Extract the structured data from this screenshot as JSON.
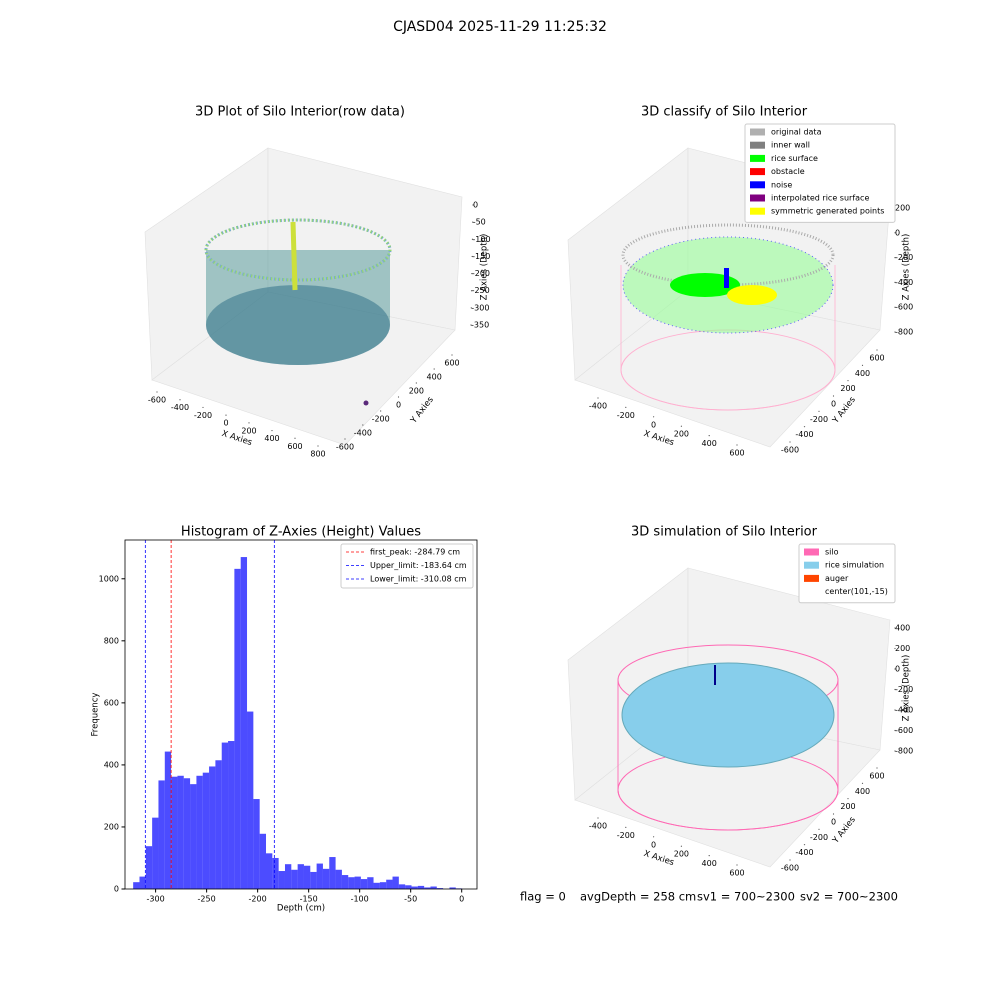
{
  "title": "CJASD04 2025-11-29 11:25:32",
  "footer": [
    "flag = 0",
    "avgDepth = 258 cm",
    "sv1 = 700~2300",
    "sv2 = 700~2300"
  ],
  "chart_data": [
    {
      "type": "scatter3d",
      "title": "3D Plot of Silo Interior(row data)",
      "xlabel": "X Axies",
      "ylabel": "Y Axies",
      "zlabel": "Z Axies (Depth)",
      "xticks": [
        -600,
        -400,
        -200,
        0,
        200,
        400,
        600,
        800
      ],
      "yticks": [
        -600,
        -400,
        -200,
        0,
        200,
        400,
        600
      ],
      "zticks": [
        0,
        -50,
        -100,
        -150,
        -200,
        -250,
        -300,
        -350
      ]
    },
    {
      "type": "scatter3d",
      "title": "3D classify of Silo Interior",
      "xlabel": "X Axies",
      "ylabel": "Y Axies",
      "zlabel": "Z Axies (Depth)",
      "xticks": [
        -400,
        -200,
        0,
        200,
        400,
        600
      ],
      "yticks": [
        -600,
        -400,
        -200,
        0,
        200,
        400,
        600
      ],
      "zticks": [
        200,
        0,
        -200,
        -400,
        -600,
        -800
      ],
      "series": [
        {
          "name": "original data",
          "color": "#b0b0b0"
        },
        {
          "name": "inner wall",
          "color": "#808080"
        },
        {
          "name": "rice surface",
          "color": "#00ff00"
        },
        {
          "name": "obstacle",
          "color": "#ff0000"
        },
        {
          "name": "noise",
          "color": "#0000ff"
        },
        {
          "name": "interpolated rice surface",
          "color": "#800080"
        },
        {
          "name": "symmetric generated points",
          "color": "#ffff00"
        }
      ]
    },
    {
      "type": "histogram",
      "title": "Histogram of Z-Axies (Height) Values",
      "xlabel": "Depth (cm)",
      "ylabel": "Frequency",
      "color": "#0000ff",
      "bins": [
        -322,
        -315.8,
        -309.6,
        -303.4,
        -297.2,
        -291,
        -284.8,
        -278.6,
        -272.4,
        -266.2,
        -260,
        -253.8,
        -247.6,
        -241.4,
        -235.2,
        -229,
        -222.8,
        -216.6,
        -210.4,
        -204.2,
        -198,
        -191.8,
        -185.6,
        -179.4,
        -173.2,
        -167,
        -160.8,
        -154.6,
        -148.4,
        -142.2,
        -136,
        -129.8,
        -123.6,
        -117.4,
        -111.2,
        -105,
        -98.8,
        -92.6,
        -86.4,
        -80.2,
        -74,
        -67.8,
        -61.6,
        -55.4,
        -49.2,
        -43,
        -36.8,
        -30.6,
        -24.4,
        -18.2,
        -12,
        -5.8,
        0.4
      ],
      "counts": [
        22,
        40,
        138,
        230,
        350,
        443,
        362,
        365,
        357,
        338,
        365,
        375,
        395,
        415,
        472,
        477,
        1032,
        1070,
        572,
        290,
        178,
        115,
        100,
        58,
        80,
        62,
        80,
        75,
        55,
        82,
        65,
        103,
        62,
        45,
        38,
        40,
        32,
        38,
        20,
        22,
        30,
        40,
        15,
        12,
        8,
        10,
        5,
        8,
        3,
        0,
        5,
        2
      ],
      "xlim": [
        -330,
        15
      ],
      "xticks": [
        -300,
        -250,
        -200,
        -150,
        -100,
        -50,
        0
      ],
      "ylim": [
        0,
        1125
      ],
      "yticks": [
        0,
        200,
        400,
        600,
        800,
        1000
      ],
      "lines": [
        {
          "name": "first_peak: -284.79 cm",
          "value": -284.79,
          "color": "#ff0000"
        },
        {
          "name": "Upper_limit: -183.64 cm",
          "value": -183.64,
          "color": "#0000ff"
        },
        {
          "name": "Lower_limit: -310.08 cm",
          "value": -310.08,
          "color": "#0000ff"
        }
      ],
      "legend": "upper right"
    },
    {
      "type": "surface3d",
      "title": "3D simulation of Silo Interior",
      "xlabel": "X Axies",
      "ylabel": "Y Axies",
      "zlabel": "Z Axies (Depth)",
      "xticks": [
        -400,
        -200,
        0,
        200,
        400,
        600
      ],
      "yticks": [
        -600,
        -400,
        -200,
        0,
        200,
        400,
        600
      ],
      "zticks": [
        400,
        200,
        0,
        -200,
        -400,
        -600,
        -800
      ],
      "series": [
        {
          "name": "silo",
          "color": "#ff69b4"
        },
        {
          "name": "rice simulation",
          "color": "#87ceeb"
        },
        {
          "name": "auger",
          "color": "#ff4500"
        },
        {
          "name": "center(101,-15)",
          "color": "#ffffff"
        }
      ]
    }
  ]
}
